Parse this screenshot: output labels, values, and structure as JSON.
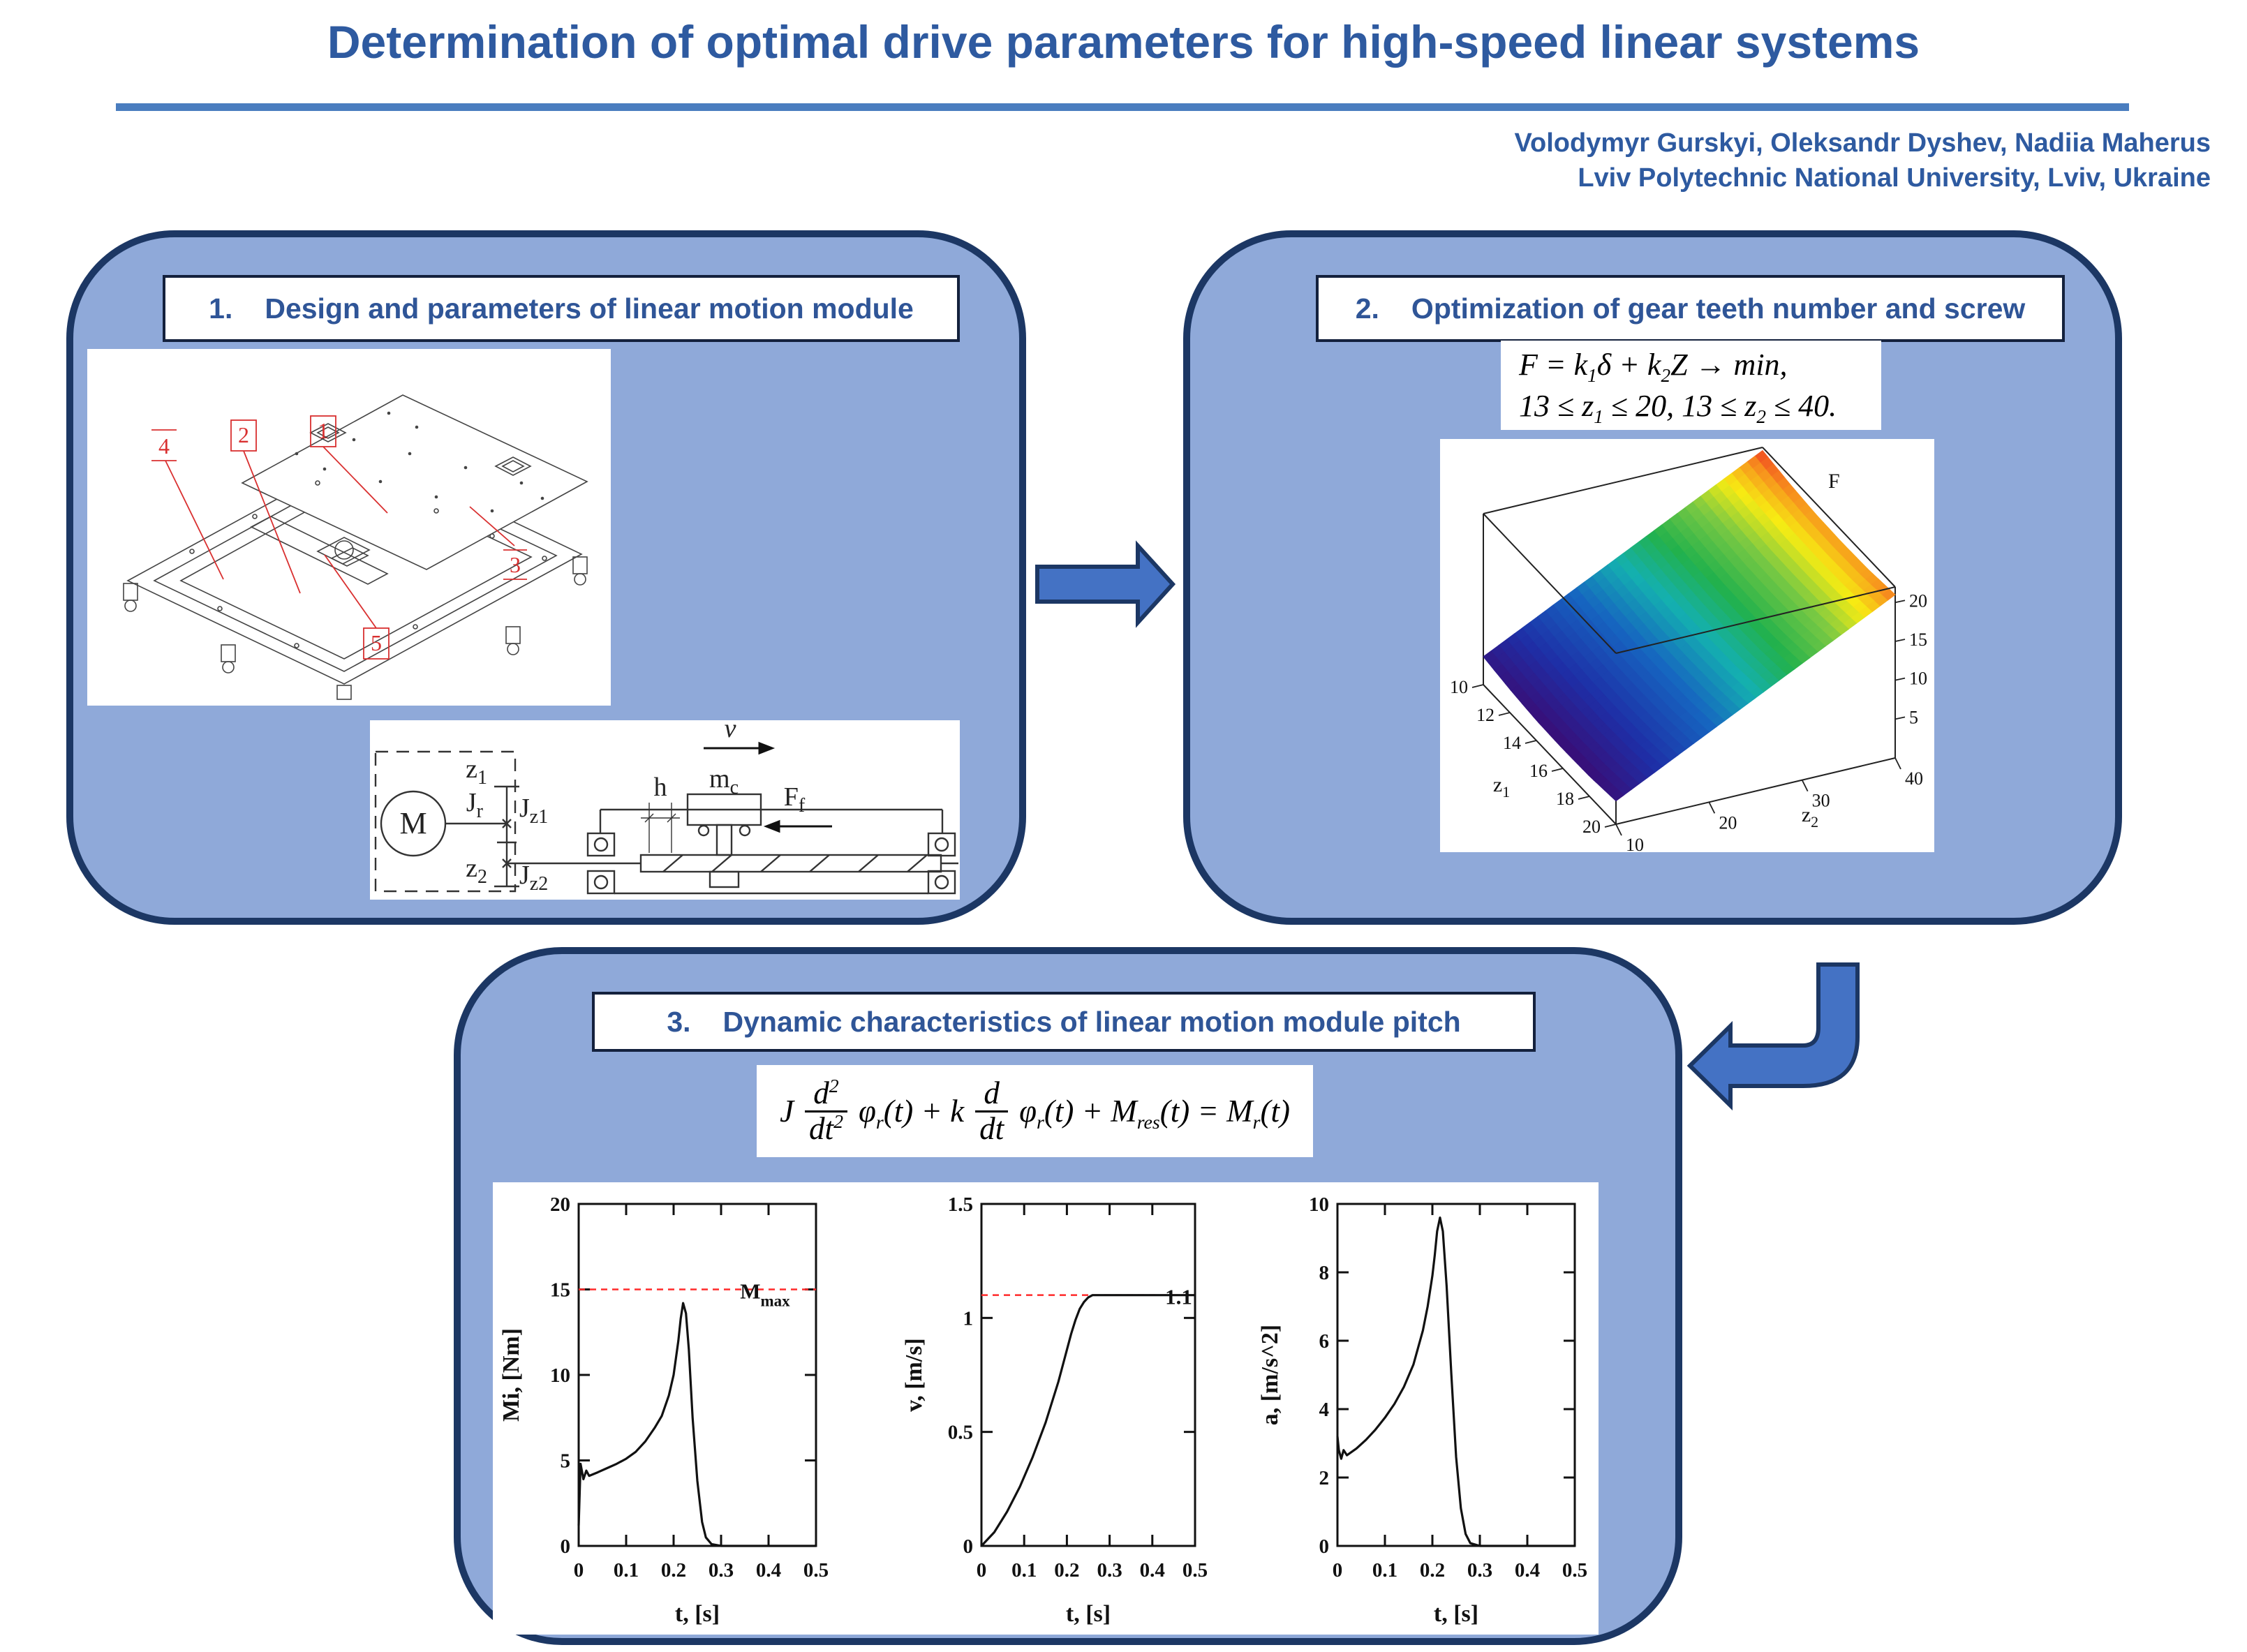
{
  "page": {
    "title": "Determination of optimal drive parameters for high-speed linear systems",
    "authors": "Volodymyr Gurskyi, Oleksandr Dyshev, Nadiia Maherus",
    "affiliation": "Lviv Polytechnic National University, Lviv, Ukraine"
  },
  "colors": {
    "accent_blue": "#2e5aa0",
    "rule_blue": "#4a7dbf",
    "panel_fill": "#8fa9d9",
    "panel_border": "#1c3764",
    "arrow_fill": "#4472c4",
    "callout_red": "#d93030",
    "ref_line_red": "#ff2a2a"
  },
  "section1": {
    "number": "1.",
    "title": "Design and parameters of linear motion module",
    "cad_labels": {
      "l1": "1",
      "l2": "2",
      "l3": "3",
      "l4": "4",
      "l5": "5"
    },
    "schematic": {
      "motor": "M",
      "z1_main": "z",
      "z1_sub": "1",
      "z2_main": "z",
      "z2_sub": "2",
      "jr_main": "J",
      "jr_sub": "r",
      "jz1_main": "J",
      "jz1_sub": "z1",
      "jz2_main": "J",
      "jz2_sub": "z2",
      "h": "h",
      "mc_main": "m",
      "mc_sub": "c",
      "v": "v",
      "ff_main": "F",
      "ff_sub": "f"
    }
  },
  "section2": {
    "number": "2.",
    "title": "Optimization of gear teeth number and screw",
    "equation_line1": {
      "a": "F = k",
      "s1": "1",
      "b": "δ + k",
      "s2": "2",
      "c": "Z → min,"
    },
    "equation_line2": {
      "a": "13 ≤ z",
      "s1": "1",
      "b": " ≤ 20, 13 ≤ z",
      "s2": "2",
      "c": " ≤ 40."
    }
  },
  "section3": {
    "number": "3.",
    "title": "Dynamic characteristics of linear motion module pitch",
    "equation": {
      "j": "J",
      "n1": "d",
      "n1e": "2",
      "d1": "dt",
      "d1e": "2",
      "p1": "φ",
      "p1s": "r",
      "t1": "(t) + k",
      "n2": "d",
      "d2": "dt",
      "p2": "φ",
      "p2s": "r",
      "t2": "(t) + M",
      "t2s": "res",
      "t3": "(t) = M",
      "t3s": "r",
      "t4": "(t)"
    }
  },
  "chart_data": [
    {
      "type": "surface",
      "title": "F",
      "x_axis": {
        "label_main": "z",
        "label_sub": "2",
        "ticks": [
          10,
          20,
          30,
          40
        ],
        "range": [
          10,
          40
        ]
      },
      "y_axis": {
        "label_main": "z",
        "label_sub": "1",
        "ticks": [
          10,
          12,
          14,
          16,
          18,
          20
        ],
        "range": [
          10,
          20
        ]
      },
      "f_axis": {
        "label": "F",
        "ticks": [
          5,
          10,
          15,
          20
        ],
        "range": [
          0,
          22
        ]
      },
      "z1_values": [
        10,
        12,
        14,
        16,
        18,
        20
      ],
      "z2_values": [
        10,
        15,
        20,
        25,
        30,
        35,
        40
      ],
      "f_matrix": [
        [
          3.6,
          6.6,
          9.6,
          12.6,
          15.6,
          18.6,
          21.6
        ],
        [
          3.0,
          6.0,
          9.0,
          12.0,
          15.0,
          18.0,
          21.0
        ],
        [
          2.6,
          5.6,
          8.6,
          11.6,
          14.6,
          17.6,
          20.6
        ],
        [
          2.5,
          5.5,
          8.5,
          11.5,
          14.5,
          17.5,
          20.5
        ],
        [
          2.6,
          5.6,
          8.6,
          11.6,
          14.6,
          17.6,
          20.6
        ],
        [
          3.0,
          6.0,
          9.0,
          12.0,
          15.0,
          18.0,
          21.0
        ]
      ]
    },
    {
      "type": "line",
      "ylabel": "Mi, [Nm]",
      "xlabel": "t, [s]",
      "xlim": [
        0,
        0.5
      ],
      "ylim": [
        0,
        20
      ],
      "xticks": [
        "0",
        "0.1",
        "0.2",
        "0.3",
        "0.4",
        "0.5"
      ],
      "yticks": [
        "0",
        "5",
        "10",
        "15",
        "20"
      ],
      "ref": {
        "y": 15,
        "label_main": "M",
        "label_sub": "max",
        "x_frac": 0.68
      },
      "x": [
        0,
        0.004,
        0.01,
        0.016,
        0.022,
        0.04,
        0.06,
        0.08,
        0.1,
        0.12,
        0.14,
        0.16,
        0.175,
        0.19,
        0.2,
        0.21,
        0.215,
        0.22,
        0.226,
        0.232,
        0.24,
        0.25,
        0.26,
        0.268,
        0.28,
        0.3,
        0.4,
        0.5
      ],
      "y": [
        1.2,
        4.8,
        3.9,
        4.4,
        4.1,
        4.3,
        4.55,
        4.8,
        5.1,
        5.5,
        6.1,
        6.9,
        7.6,
        8.8,
        10.0,
        12.0,
        13.3,
        14.2,
        13.6,
        11.5,
        7.5,
        3.8,
        1.4,
        0.5,
        0.1,
        0,
        0,
        0
      ]
    },
    {
      "type": "line",
      "ylabel": "v, [m/s]",
      "xlabel": "t, [s]",
      "xlim": [
        0,
        0.5
      ],
      "ylim": [
        0,
        1.5
      ],
      "xticks": [
        "0",
        "0.1",
        "0.2",
        "0.3",
        "0.4",
        "0.5"
      ],
      "yticks": [
        "0",
        "0.5",
        "1",
        "1.5"
      ],
      "ref": {
        "y": 1.1,
        "label_main": "1.1",
        "label_sub": "",
        "x_frac": 0.86
      },
      "x": [
        0,
        0.03,
        0.06,
        0.09,
        0.12,
        0.15,
        0.18,
        0.2,
        0.21,
        0.22,
        0.23,
        0.24,
        0.25,
        0.26,
        0.28,
        0.32,
        0.4,
        0.5
      ],
      "y": [
        0,
        0.06,
        0.15,
        0.26,
        0.39,
        0.54,
        0.72,
        0.86,
        0.93,
        0.99,
        1.04,
        1.07,
        1.09,
        1.1,
        1.1,
        1.1,
        1.1,
        1.1
      ]
    },
    {
      "type": "line",
      "ylabel": "a, [m/s^2]",
      "xlabel": "t, [s]",
      "xlim": [
        0,
        0.5
      ],
      "ylim": [
        0,
        10
      ],
      "xticks": [
        "0",
        "0.1",
        "0.2",
        "0.3",
        "0.4",
        "0.5"
      ],
      "yticks": [
        "0",
        "2",
        "4",
        "6",
        "8",
        "10"
      ],
      "x": [
        0,
        0.003,
        0.008,
        0.013,
        0.02,
        0.04,
        0.06,
        0.08,
        0.1,
        0.12,
        0.14,
        0.16,
        0.18,
        0.19,
        0.2,
        0.205,
        0.21,
        0.216,
        0.222,
        0.23,
        0.24,
        0.25,
        0.26,
        0.27,
        0.28,
        0.3,
        0.4,
        0.5
      ],
      "y": [
        3.2,
        2.8,
        2.55,
        2.8,
        2.65,
        2.85,
        3.1,
        3.4,
        3.75,
        4.15,
        4.65,
        5.3,
        6.3,
        7.0,
        7.9,
        8.5,
        9.2,
        9.6,
        9.2,
        7.6,
        5.0,
        2.6,
        1.1,
        0.35,
        0.08,
        0,
        0,
        0
      ]
    }
  ]
}
